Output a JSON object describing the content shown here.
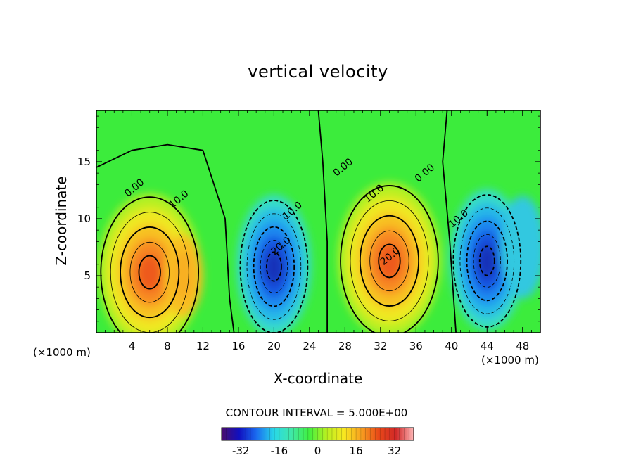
{
  "chart_data": {
    "type": "heatmap",
    "title": "vertical velocity",
    "xlabel": "X-coordinate",
    "ylabel": "Z-coordinate",
    "x_unit_label": "(×1000 m)",
    "xlim": [
      0,
      50
    ],
    "ylim": [
      0,
      19.5
    ],
    "x_ticks": [
      4,
      8,
      12,
      16,
      20,
      24,
      28,
      32,
      36,
      40,
      44,
      48
    ],
    "y_ticks": [
      5,
      10,
      15
    ],
    "contour_interval_label": "CONTOUR INTERVAL = 5.000E+00",
    "colorbar": {
      "range": [
        -40,
        40
      ],
      "ticks": [
        -32,
        -16,
        0,
        16,
        32
      ],
      "colors": [
        "#4b0c6b",
        "#1010c0",
        "#1a6cf0",
        "#28d8e8",
        "#40e8a8",
        "#40f040",
        "#b8f020",
        "#f8e820",
        "#f8a020",
        "#e84818",
        "#d02828",
        "#ffb8b8"
      ]
    },
    "contour_labels": [
      {
        "text": "0.00",
        "x": 4.5,
        "z": 12.5
      },
      {
        "text": "10.0",
        "x": 9.5,
        "z": 11.5
      },
      {
        "text": "10.0",
        "x": 22.3,
        "z": 10.5
      },
      {
        "text": "20.0",
        "x": 21.0,
        "z": 7.4
      },
      {
        "text": "0.00",
        "x": 28.0,
        "z": 14.3
      },
      {
        "text": "10.0",
        "x": 31.5,
        "z": 12.0
      },
      {
        "text": "20.0",
        "x": 33.3,
        "z": 6.5
      },
      {
        "text": "0.00",
        "x": 37.2,
        "z": 13.8
      },
      {
        "text": "10.0",
        "x": 41.0,
        "z": 9.8
      }
    ],
    "features": [
      {
        "kind": "updraft",
        "x": 6.0,
        "z": 5.0,
        "peak": 32
      },
      {
        "kind": "downdraft",
        "x": 20.0,
        "z": 5.5,
        "peak": -28
      },
      {
        "kind": "updraft",
        "x": 33.0,
        "z": 6.0,
        "peak": 30
      },
      {
        "kind": "downdraft",
        "x": 44.0,
        "z": 6.0,
        "peak": -32
      }
    ]
  }
}
